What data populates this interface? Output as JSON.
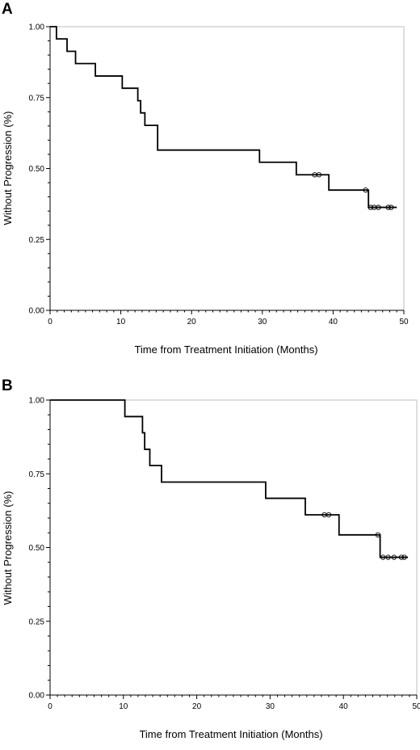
{
  "chart_data": [
    {
      "type": "line",
      "subtype": "kaplan-meier step curve",
      "panel_label": "A",
      "xlabel": "Time from Treatment Initiation (Months)",
      "ylabel": "Without Progression (%)",
      "xlim": [
        0,
        50
      ],
      "ylim": [
        0,
        1
      ],
      "x_ticks": [
        0,
        10,
        20,
        30,
        40,
        50
      ],
      "y_ticks": [
        0,
        0.25,
        0.5,
        0.75,
        1.0
      ],
      "x_tick_labels": [
        "0",
        "10",
        "20",
        "30",
        "40",
        "50"
      ],
      "y_tick_labels": [
        "0.00",
        "0.25",
        "0.50",
        "0.75",
        "1.00"
      ],
      "grid": false,
      "series": [
        {
          "steps": [
            {
              "x": 0,
              "y": 1.0
            },
            {
              "x": 0.9,
              "y": 0.957
            },
            {
              "x": 2.4,
              "y": 0.913
            },
            {
              "x": 3.6,
              "y": 0.87
            },
            {
              "x": 6.4,
              "y": 0.826
            },
            {
              "x": 10.2,
              "y": 0.783
            },
            {
              "x": 12.4,
              "y": 0.739
            },
            {
              "x": 12.8,
              "y": 0.696
            },
            {
              "x": 13.4,
              "y": 0.652
            },
            {
              "x": 15.2,
              "y": 0.565
            },
            {
              "x": 29.6,
              "y": 0.522
            },
            {
              "x": 34.8,
              "y": 0.478
            },
            {
              "x": 39.4,
              "y": 0.424
            },
            {
              "x": 45.0,
              "y": 0.363
            }
          ],
          "x_end": 49.0,
          "censored": [
            {
              "x": 37.4,
              "y": 0.478
            },
            {
              "x": 38.0,
              "y": 0.478
            },
            {
              "x": 44.6,
              "y": 0.424
            },
            {
              "x": 45.3,
              "y": 0.363
            },
            {
              "x": 45.8,
              "y": 0.363
            },
            {
              "x": 46.4,
              "y": 0.363
            },
            {
              "x": 47.8,
              "y": 0.363
            },
            {
              "x": 48.2,
              "y": 0.363
            }
          ]
        }
      ]
    },
    {
      "type": "line",
      "subtype": "kaplan-meier step curve",
      "panel_label": "B",
      "xlabel": "Time from Treatment Initiation (Months)",
      "ylabel": "Without Progression (%)",
      "xlim": [
        0,
        50
      ],
      "ylim": [
        0,
        1
      ],
      "x_ticks": [
        0,
        10,
        20,
        30,
        40,
        50
      ],
      "y_ticks": [
        0,
        0.25,
        0.5,
        0.75,
        1.0
      ],
      "x_tick_labels": [
        "0",
        "10",
        "20",
        "30",
        "40",
        "50"
      ],
      "y_tick_labels": [
        "0.00",
        "0.25",
        "0.50",
        "0.75",
        "1.00"
      ],
      "grid": false,
      "series": [
        {
          "steps": [
            {
              "x": 0,
              "y": 1.0
            },
            {
              "x": 10.2,
              "y": 0.944
            },
            {
              "x": 12.6,
              "y": 0.889
            },
            {
              "x": 12.9,
              "y": 0.833
            },
            {
              "x": 13.6,
              "y": 0.778
            },
            {
              "x": 15.2,
              "y": 0.722
            },
            {
              "x": 29.4,
              "y": 0.667
            },
            {
              "x": 34.8,
              "y": 0.611
            },
            {
              "x": 39.4,
              "y": 0.543
            },
            {
              "x": 45.0,
              "y": 0.467
            }
          ],
          "x_end": 48.8,
          "censored": [
            {
              "x": 37.4,
              "y": 0.611
            },
            {
              "x": 38.0,
              "y": 0.611
            },
            {
              "x": 44.7,
              "y": 0.543
            },
            {
              "x": 45.4,
              "y": 0.467
            },
            {
              "x": 46.1,
              "y": 0.467
            },
            {
              "x": 46.9,
              "y": 0.467
            },
            {
              "x": 47.9,
              "y": 0.467
            },
            {
              "x": 48.3,
              "y": 0.467
            }
          ]
        }
      ]
    }
  ]
}
